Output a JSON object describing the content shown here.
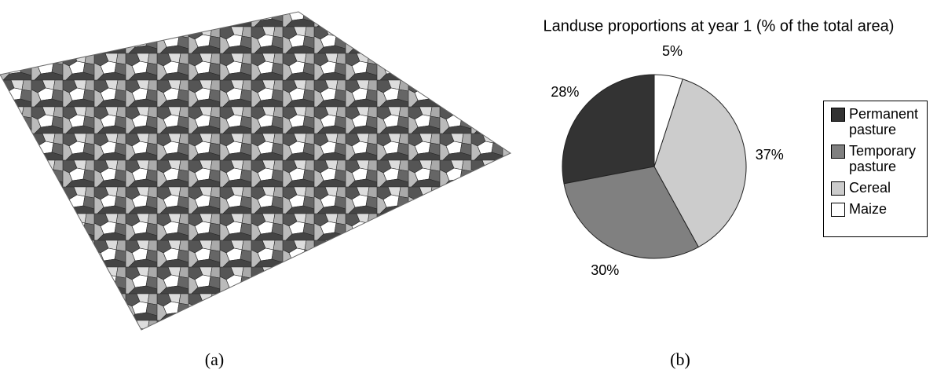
{
  "chart_data": {
    "type": "pie",
    "title": "Landuse proportions at year 1 (% of the total area)",
    "categories": [
      "Permanent pasture",
      "Temporary pasture",
      "Cereal",
      "Maize"
    ],
    "values": [
      28,
      30,
      37,
      5
    ],
    "value_labels": [
      "28%",
      "30%",
      "37%",
      "5%"
    ],
    "colors": [
      "#333333",
      "#808080",
      "#cccccc",
      "#ffffff"
    ]
  },
  "captions": [
    "(a)",
    "(b)"
  ]
}
